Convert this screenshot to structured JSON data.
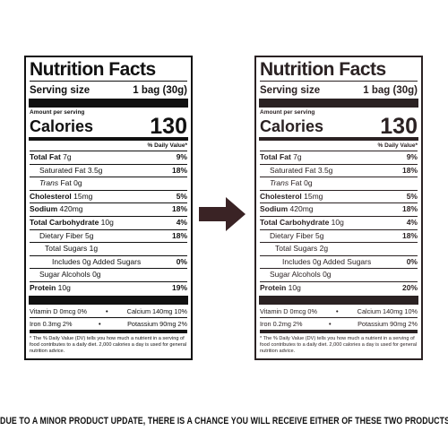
{
  "labels": [
    {
      "title": "Nutrition Facts",
      "serving_label": "Serving size",
      "serving_value": "1 bag (30g)",
      "amount_per_serving": "Amount per serving",
      "calories_label": "Calories",
      "calories_value": "130",
      "dv_header": "% Daily Value*",
      "total_fat": {
        "label": "Total Fat",
        "amount": "7g",
        "dv": "9%"
      },
      "sat_fat": {
        "label": "Saturated Fat 3.5g",
        "dv": "18%"
      },
      "trans_fat": {
        "label": "Trans",
        "suffix": "Fat 0g"
      },
      "cholesterol": {
        "label": "Cholesterol",
        "amount": "15mg",
        "dv": "5%"
      },
      "sodium": {
        "label": "Sodium",
        "amount": "420mg",
        "dv": "18%"
      },
      "carbs": {
        "label": "Total Carbohydrate",
        "amount": "10g",
        "dv": "4%"
      },
      "fiber": {
        "label": "Dietary Fiber 5g",
        "dv": "18%"
      },
      "sugars": {
        "label": "Total Sugars 1g"
      },
      "added_sugars": {
        "label": "Includes 0g Added Sugars",
        "dv": "0%"
      },
      "sugar_alcohols": {
        "label": "Sugar Alcohols 0g"
      },
      "protein": {
        "label": "Protein",
        "amount": "10g",
        "dv": "19%"
      },
      "vit_d": "Vitamin D 0mcg 0%",
      "calcium": "Calcium 140mg 10%",
      "iron": "Iron 0.3mg 2%",
      "potassium": "Potassium 90mg 2%",
      "footnote": "* The % Daily Value (DV) tells you how much a nutrient in a serving of food contributes to a daily diet. 2,000 calories a day is used for general nutrition advice."
    },
    {
      "title": "Nutrition Facts",
      "serving_label": "Serving size",
      "serving_value": "1 bag (30g)",
      "amount_per_serving": "Amount per serving",
      "calories_label": "Calories",
      "calories_value": "130",
      "dv_header": "% Daily Value*",
      "total_fat": {
        "label": "Total Fat",
        "amount": "7g",
        "dv": "9%"
      },
      "sat_fat": {
        "label": "Saturated Fat 3.5g",
        "dv": "18%"
      },
      "trans_fat": {
        "label": "Trans",
        "suffix": "Fat 0g"
      },
      "cholesterol": {
        "label": "Cholesterol",
        "amount": "15mg",
        "dv": "5%"
      },
      "sodium": {
        "label": "Sodium",
        "amount": "420mg",
        "dv": "18%"
      },
      "carbs": {
        "label": "Total Carbohydrate",
        "amount": "10g",
        "dv": "4%"
      },
      "fiber": {
        "label": "Dietary Fiber 5g",
        "dv": "18%"
      },
      "sugars": {
        "label": "Total Sugars 2g"
      },
      "added_sugars": {
        "label": "Includes 0g Added Sugars",
        "dv": "0%"
      },
      "sugar_alcohols": {
        "label": "Sugar Alcohols 0g"
      },
      "protein": {
        "label": "Protein",
        "amount": "10g",
        "dv": "20%"
      },
      "vit_d": "Vitamin D 0mcg 0%",
      "calcium": "Calcium 140mg 10%",
      "iron": "Iron 0.2mg 2%",
      "potassium": "Potassium 90mg 2%",
      "footnote": "* The % Daily Value (DV) tells you how much a nutrient in a serving of food contributes to a daily diet. 2,000 calories a day is used for general nutrition advice."
    }
  ],
  "arrow": {
    "icon": "arrow-right-icon",
    "color": "#3a2325"
  },
  "colors": {
    "left_label": "#111111",
    "right_label": "#2b2223"
  },
  "notice": "DUE TO A MINOR PRODUCT UPDATE, THERE IS A CHANCE YOU WILL RECEIVE EITHER OF THESE TWO PRODUCTS."
}
